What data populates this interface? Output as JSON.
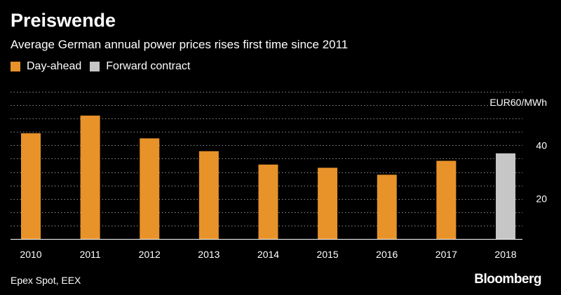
{
  "header": {
    "title": "Preiswende",
    "subtitle": "Average German annual power prices rises first time since 2011"
  },
  "legend": {
    "items": [
      {
        "label": "Day-ahead",
        "color": "#E8922A"
      },
      {
        "label": "Forward contract",
        "color": "#C6C6C6"
      }
    ]
  },
  "footer": {
    "source": "Epex Spot, EEX",
    "brand": "Bloomberg"
  },
  "chart_data": {
    "type": "bar",
    "categories": [
      "2010",
      "2011",
      "2012",
      "2013",
      "2014",
      "2015",
      "2016",
      "2017",
      "2018"
    ],
    "series": [
      {
        "name": "Day-ahead",
        "color": "#E8922A",
        "values": [
          44.5,
          51.1,
          42.6,
          37.8,
          32.8,
          31.6,
          29.0,
          34.2,
          null
        ]
      },
      {
        "name": "Forward contract",
        "color": "#C6C6C6",
        "values": [
          null,
          null,
          null,
          null,
          null,
          null,
          null,
          null,
          37.0
        ]
      }
    ],
    "yunit_label": "EUR60/MWh",
    "yticks": [
      20,
      40
    ],
    "ylim": [
      5,
      60
    ],
    "grid": true,
    "legend_position": "top-left"
  }
}
